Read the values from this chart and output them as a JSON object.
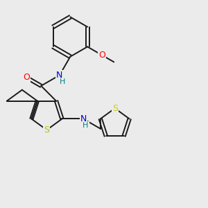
{
  "background_color": "#ebebeb",
  "bond_color": "#1a1a1a",
  "atom_colors": {
    "O": "#ff0000",
    "N": "#0000cc",
    "S_main": "#bbbb00",
    "S_thienyl": "#cccc00",
    "H": "#008080",
    "C": "#1a1a1a"
  },
  "figsize": [
    3.0,
    3.0
  ],
  "dpi": 100
}
